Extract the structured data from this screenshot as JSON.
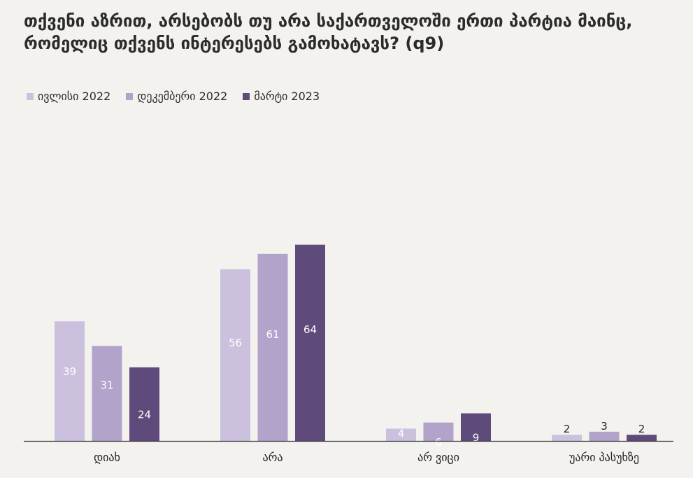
{
  "title": "თქვენი აზრით, არსებობს თუ არა საქართველოში ერთი პარტია მაინც, რომელიც თქვენს ინტერესებს გამოხატავს? (q9)",
  "chart_data": {
    "type": "bar",
    "categories": [
      "დიახ",
      "არა",
      "არ ვიცი",
      "უარი პასუხზე"
    ],
    "series": [
      {
        "name": "ივლისი 2022",
        "color": "#cbc1de",
        "values": [
          39,
          56,
          4,
          2
        ]
      },
      {
        "name": "დეკემბერი 2022",
        "color": "#b2a3cb",
        "values": [
          31,
          61,
          6,
          3
        ]
      },
      {
        "name": "მარტი 2023",
        "color": "#5e4a7b",
        "values": [
          24,
          64,
          9,
          2
        ]
      }
    ],
    "ylim": [
      0,
      64
    ],
    "grid": false,
    "legend_position": "top-left"
  }
}
